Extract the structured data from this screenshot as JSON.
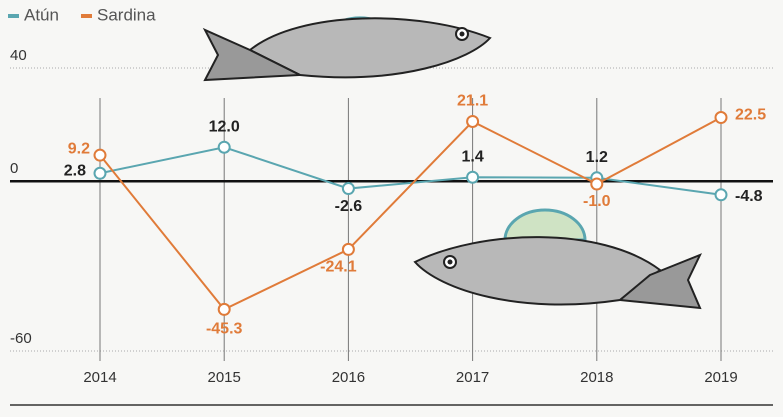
{
  "chart_data": {
    "type": "line",
    "categories": [
      "2014",
      "2015",
      "2016",
      "2017",
      "2018",
      "2019"
    ],
    "series": [
      {
        "name": "Atún",
        "color": "#5aa6b0",
        "values": [
          2.8,
          12.0,
          -2.6,
          1.4,
          1.2,
          -4.8
        ],
        "value_labels": [
          "2.8",
          "12.0",
          "-2.6",
          "1.4",
          "1.2",
          "-4.8"
        ],
        "label_color": "#222222"
      },
      {
        "name": "Sardina",
        "color": "#e07b39",
        "values": [
          9.2,
          -45.3,
          -24.1,
          21.1,
          -1.0,
          22.5
        ],
        "value_labels": [
          "9.2",
          "-45.3",
          "-24.1",
          "21.1",
          "-1.0",
          "22.5"
        ],
        "label_color": "#e07b39"
      }
    ],
    "ylim": [
      -60,
      40
    ],
    "yticks": [
      -60,
      0,
      40
    ],
    "grid": true,
    "legend": "top-left"
  }
}
